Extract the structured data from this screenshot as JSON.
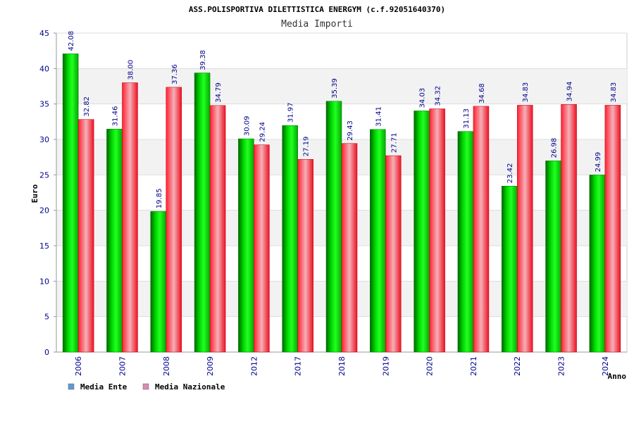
{
  "chart_data": {
    "type": "bar",
    "title": "ASS.POLISPORTIVA DILETTISTICA ENERGYM (c.f.92051640370)",
    "subtitle": "Media Importi",
    "xlabel": "Anno",
    "ylabel": "Euro",
    "ylim": [
      0,
      45
    ],
    "yticks": [
      0,
      5,
      10,
      15,
      20,
      25,
      30,
      35,
      40,
      45
    ],
    "grid": true,
    "legend_position": "bottom-left",
    "categories": [
      "2006",
      "2007",
      "2008",
      "2009",
      "2012",
      "2017",
      "2018",
      "2019",
      "2020",
      "2021",
      "2022",
      "2023",
      "2024"
    ],
    "series": [
      {
        "name": "Media Ente",
        "color": "#00cc00",
        "legend_color": "#5b9bd5",
        "values": [
          42.08,
          31.46,
          19.85,
          39.38,
          30.09,
          31.97,
          35.39,
          31.41,
          34.03,
          31.13,
          23.42,
          26.98,
          24.99
        ],
        "labels": [
          "42.08",
          "31.46",
          "19.85",
          "39.38",
          "30.09",
          "31.97",
          "35.39",
          "31.41",
          "34.03",
          "31.13",
          "23.42",
          "26.98",
          "24.99"
        ]
      },
      {
        "name": "Media Nazionale",
        "color": "#e8202a",
        "legend_color": "#d98cb3",
        "values": [
          32.82,
          38.0,
          37.36,
          34.79,
          29.24,
          27.19,
          29.43,
          27.71,
          34.32,
          34.68,
          34.83,
          34.94,
          34.83
        ],
        "labels": [
          "32.82",
          "38.00",
          "37.36",
          "34.79",
          "29.24",
          "27.19",
          "29.43",
          "27.71",
          "34.32",
          "34.68",
          "34.83",
          "34.94",
          "34.83"
        ]
      }
    ]
  }
}
